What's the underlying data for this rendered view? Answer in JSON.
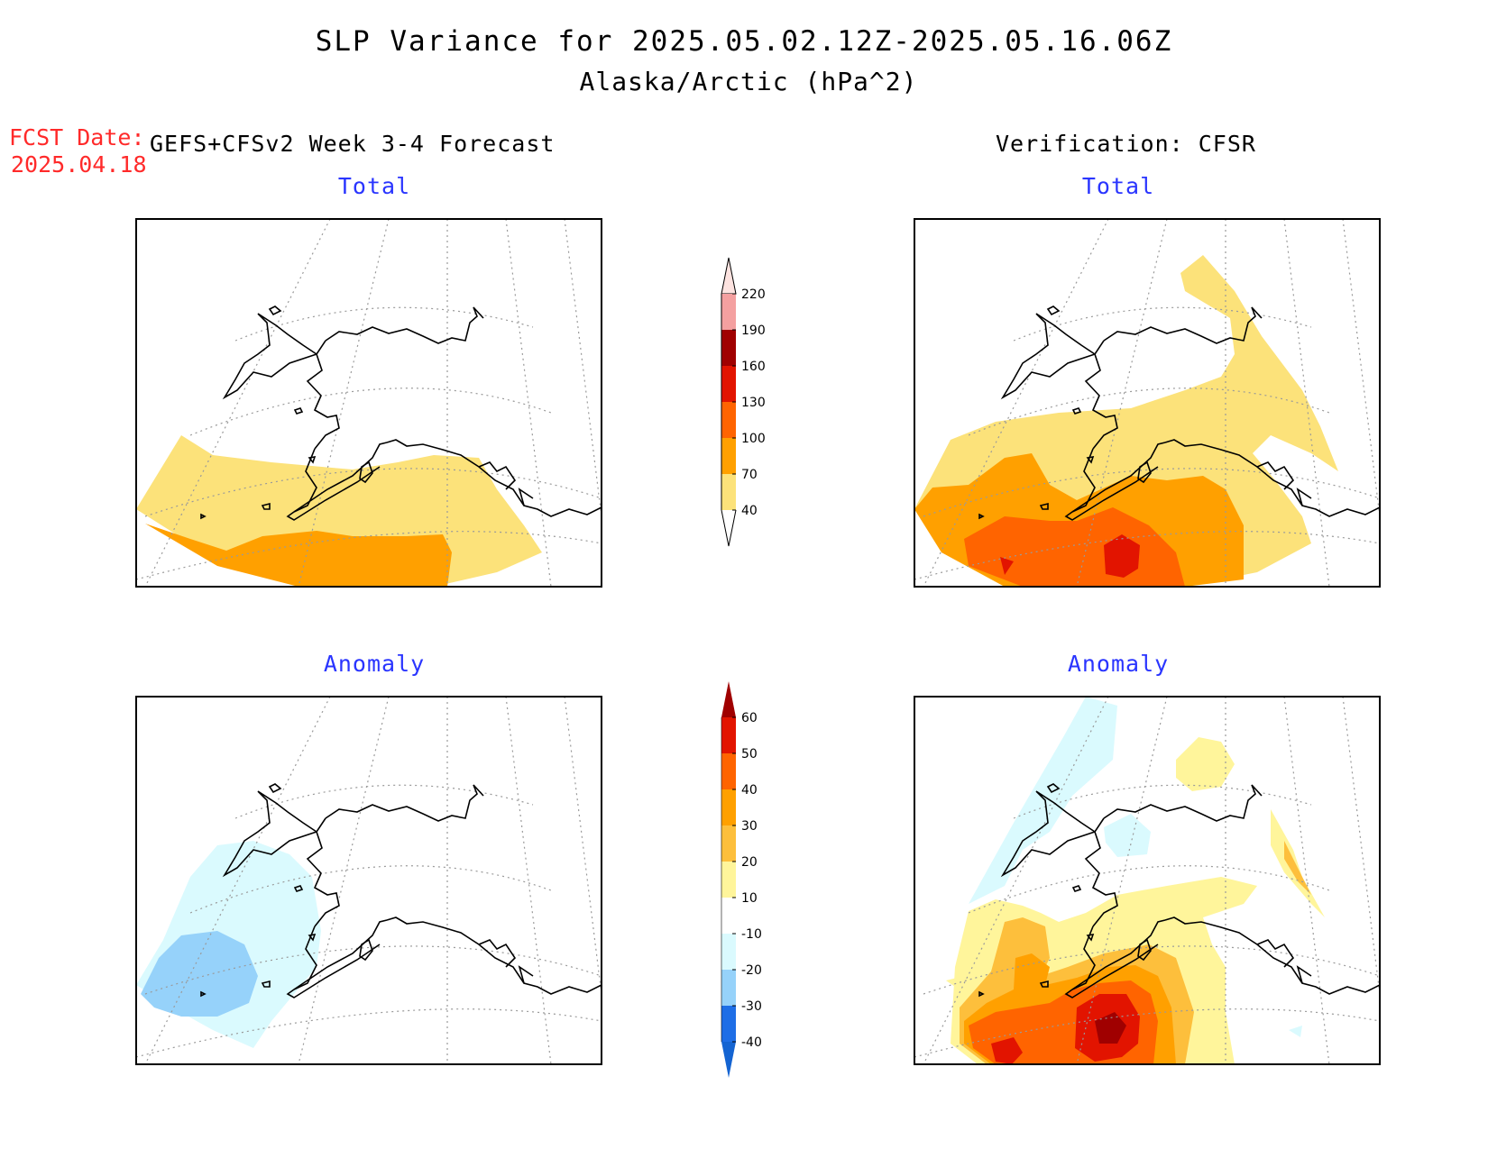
{
  "title": "SLP Variance for 2025.05.02.12Z-2025.05.16.06Z",
  "subtitle": "Alaska/Arctic (hPa^2)",
  "forecast": {
    "label": "FCST Date:",
    "date": "2025.04.18"
  },
  "left_header": "GEFS+CFSv2 Week 3-4 Forecast",
  "right_header": "Verification: CFSR",
  "panels": {
    "forecast_total": {
      "title": "Total"
    },
    "verif_total": {
      "title": "Total"
    },
    "forecast_anom": {
      "title": "Anomaly"
    },
    "verif_anom": {
      "title": "Anomaly"
    }
  },
  "colorbar_total": {
    "labels": [
      "220",
      "190",
      "160",
      "130",
      "100",
      "70",
      "40"
    ],
    "colors": [
      "#fde3e0",
      "#f4a0a0",
      "#a00000",
      "#e21400",
      "#ff6400",
      "#ffa000",
      "#fce27a"
    ]
  },
  "colorbar_anom": {
    "labels": [
      "60",
      "50",
      "40",
      "30",
      "20",
      "10",
      "-10",
      "-20",
      "-30",
      "-40"
    ],
    "colors": [
      "#a00000",
      "#e21400",
      "#ff6400",
      "#ffa000",
      "#fdbf3c",
      "#fff59b",
      "#ffffff",
      "#dafafe",
      "#96d2fa",
      "#1e6ee6",
      "#1464d2"
    ]
  }
}
